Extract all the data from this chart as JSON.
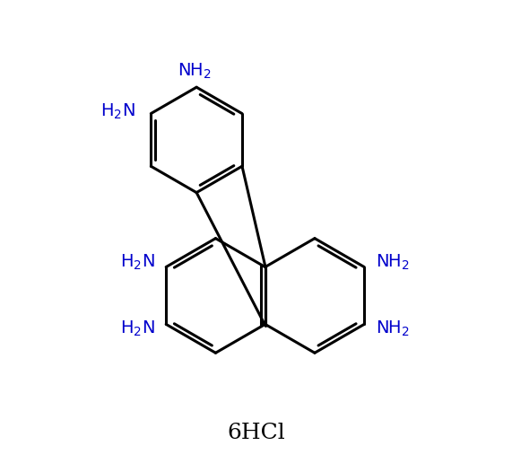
{
  "title": "6HCl",
  "title_fontsize": 18,
  "bond_color": "#000000",
  "amine_color": "#0000CC",
  "amine_fontsize": 14,
  "bond_lw": 2.2,
  "background": "#ffffff",
  "fig_width": 5.71,
  "fig_height": 5.16,
  "dpi": 100,
  "xlim": [
    0,
    10
  ],
  "ylim": [
    0,
    10
  ]
}
